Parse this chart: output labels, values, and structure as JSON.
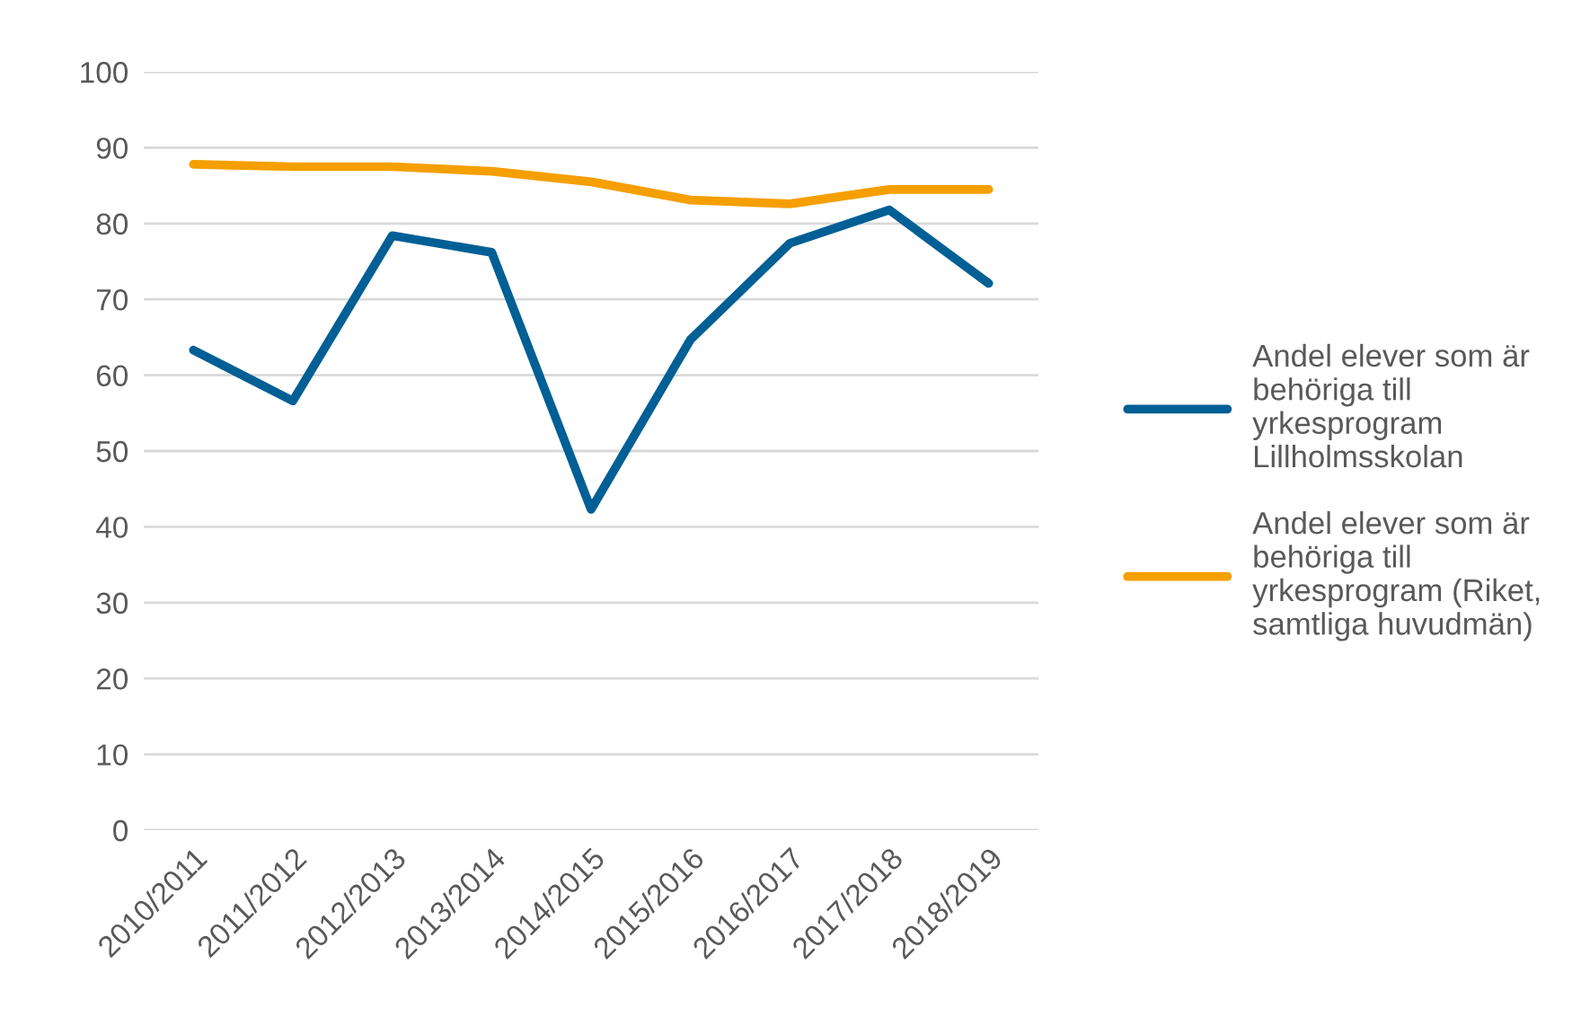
{
  "chart_data": {
    "type": "line",
    "categories": [
      "2010/2011",
      "2011/2012",
      "2012/2013",
      "2013/2014",
      "2014/2015",
      "2015/2016",
      "2016/2017",
      "2017/2018",
      "2018/2019"
    ],
    "series": [
      {
        "name": "Andel elever som är behöriga till yrkesprogram Lillholmsskolan",
        "color": "#005f95",
        "values": [
          63.3,
          56.6,
          78.4,
          76.2,
          42.3,
          64.7,
          77.4,
          81.8,
          72.1
        ]
      },
      {
        "name": "Andel elever som är behöriga till yrkesprogram (Riket, samtliga huvudmän)",
        "color": "#f59f00",
        "values": [
          87.8,
          87.5,
          87.5,
          86.9,
          85.5,
          83.1,
          82.6,
          84.5,
          84.5
        ]
      }
    ],
    "ylim": [
      0,
      100
    ],
    "yticks": [
      0,
      10,
      20,
      30,
      40,
      50,
      60,
      70,
      80,
      90,
      100
    ],
    "grid": "y",
    "legend": "right",
    "marker": "none",
    "line_style": "solid"
  }
}
